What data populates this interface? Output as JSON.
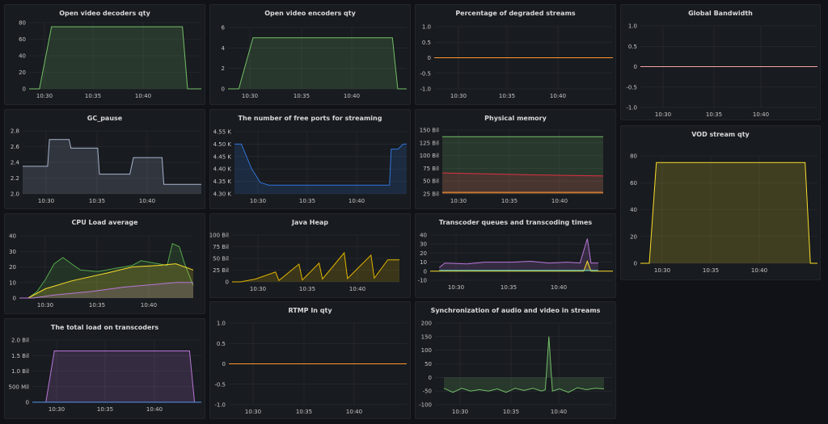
{
  "theme": {
    "background": "#111217",
    "panel": "#181b1f",
    "grid": "#2c2f35",
    "text": "#c7c7c7"
  },
  "time_ticks": [
    "10:30",
    "10:35",
    "10:40"
  ],
  "panels": [
    {
      "id": "video-decoders",
      "title": "Open video decoders qty",
      "chart_data": {
        "type": "area",
        "ylim": [
          0,
          80
        ],
        "yticks": [
          "0",
          "20",
          "40",
          "60",
          "80"
        ],
        "series": [
          {
            "color": "#73bf69",
            "values": [
              [
                0,
                0
              ],
              [
                0.06,
                0
              ],
              [
                0.13,
                75
              ],
              [
                0.89,
                75
              ],
              [
                0.92,
                0
              ],
              [
                1,
                0
              ]
            ]
          }
        ]
      }
    },
    {
      "id": "video-encoders",
      "title": "Open video encoders qty",
      "chart_data": {
        "type": "area",
        "ylim": [
          0,
          6
        ],
        "yticks": [
          "0",
          "2",
          "4",
          "6"
        ],
        "series": [
          {
            "color": "#73bf69",
            "values": [
              [
                0,
                0
              ],
              [
                0.06,
                0
              ],
              [
                0.14,
                5
              ],
              [
                0.92,
                5
              ],
              [
                0.95,
                0
              ],
              [
                1,
                0
              ]
            ]
          }
        ]
      }
    },
    {
      "id": "degraded-streams",
      "title": "Percentage of degraded streams",
      "chart_data": {
        "type": "line",
        "ylim": [
          -1,
          1
        ],
        "yticks": [
          "-1.0",
          "-0.5",
          "0",
          "0.5",
          "1.0"
        ],
        "series": [
          {
            "color": "#ff9830",
            "values": [
              [
                0,
                0
              ],
              [
                1,
                0
              ]
            ]
          }
        ]
      }
    },
    {
      "id": "global-bandwidth",
      "title": "Global Bandwidth",
      "chart_data": {
        "type": "line",
        "ylim": [
          -1,
          1
        ],
        "yticks": [
          "-1.0",
          "-0.5",
          "0",
          "0.5",
          "1.0"
        ],
        "series": [
          {
            "color": "#f2a2a2",
            "values": [
              [
                0,
                0
              ],
              [
                1,
                0
              ]
            ]
          }
        ]
      }
    },
    {
      "id": "gc-pause",
      "title": "GC_pause",
      "chart_data": {
        "type": "area",
        "ylim": [
          2.0,
          2.8
        ],
        "yticks": [
          "2.0",
          "2.2",
          "2.4",
          "2.6",
          "2.8"
        ],
        "series": [
          {
            "color": "#a7b4cf",
            "values": [
              [
                0,
                2.35
              ],
              [
                0.14,
                2.35
              ],
              [
                0.15,
                2.69
              ],
              [
                0.26,
                2.69
              ],
              [
                0.27,
                2.58
              ],
              [
                0.42,
                2.58
              ],
              [
                0.43,
                2.25
              ],
              [
                0.6,
                2.25
              ],
              [
                0.62,
                2.46
              ],
              [
                0.78,
                2.46
              ],
              [
                0.79,
                2.12
              ],
              [
                1,
                2.12
              ]
            ]
          }
        ]
      }
    },
    {
      "id": "free-ports",
      "title": "The number of free ports for streaming",
      "chart_data": {
        "type": "area",
        "ylim": [
          4.3,
          4.55
        ],
        "yticks": [
          "4.30 K",
          "4.35 K",
          "4.40 K",
          "4.45 K",
          "4.50 K",
          "4.55 K"
        ],
        "series": [
          {
            "color": "#3274d9",
            "values": [
              [
                0,
                4.5
              ],
              [
                0.04,
                4.5
              ],
              [
                0.1,
                4.4
              ],
              [
                0.15,
                4.345
              ],
              [
                0.2,
                4.335
              ],
              [
                0.5,
                4.335
              ],
              [
                0.9,
                4.335
              ],
              [
                0.91,
                4.48
              ],
              [
                0.95,
                4.48
              ],
              [
                0.98,
                4.5
              ],
              [
                1,
                4.5
              ]
            ]
          }
        ]
      }
    },
    {
      "id": "physical-memory",
      "title": "Physical memory",
      "chart_data": {
        "type": "area",
        "ylim": [
          25,
          150
        ],
        "yticks": [
          "25 Bil",
          "50 Bil",
          "75 Bil",
          "100 Bil",
          "125 Bil",
          "150 Bil"
        ],
        "series": [
          {
            "color": "#73bf69",
            "values": [
              [
                0,
                137
              ],
              [
                1,
                137
              ]
            ]
          },
          {
            "color": "#e02f44",
            "values": [
              [
                0,
                66
              ],
              [
                0.3,
                64
              ],
              [
                0.6,
                62
              ],
              [
                1,
                60
              ]
            ]
          },
          {
            "color": "#ff9830",
            "values": [
              [
                0,
                28
              ],
              [
                1,
                28
              ]
            ]
          }
        ]
      }
    },
    {
      "id": "vod-stream",
      "title": "VOD stream qty",
      "chart_data": {
        "type": "area",
        "ylim": [
          0,
          80
        ],
        "yticks": [
          "0",
          "20",
          "40",
          "60",
          "80"
        ],
        "series": [
          {
            "color": "#fade2a",
            "values": [
              [
                0,
                0
              ],
              [
                0.05,
                0
              ],
              [
                0.09,
                75
              ],
              [
                0.93,
                75
              ],
              [
                0.96,
                0
              ],
              [
                1,
                0
              ]
            ]
          }
        ]
      }
    },
    {
      "id": "cpu-load",
      "title": "CPU Load average",
      "chart_data": {
        "type": "area",
        "ylim": [
          0,
          40
        ],
        "yticks": [
          "0",
          "10",
          "20",
          "30",
          "40"
        ],
        "series": [
          {
            "color": "#56a64b",
            "values": [
              [
                0,
                0
              ],
              [
                0.05,
                0
              ],
              [
                0.1,
                4
              ],
              [
                0.15,
                12
              ],
              [
                0.2,
                22
              ],
              [
                0.25,
                26
              ],
              [
                0.3,
                22
              ],
              [
                0.35,
                18
              ],
              [
                0.45,
                17
              ],
              [
                0.55,
                19
              ],
              [
                0.65,
                21
              ],
              [
                0.7,
                24
              ],
              [
                0.75,
                23
              ],
              [
                0.8,
                22
              ],
              [
                0.85,
                21
              ],
              [
                0.88,
                35
              ],
              [
                0.92,
                33
              ],
              [
                0.95,
                22
              ],
              [
                1,
                8
              ]
            ]
          },
          {
            "color": "#fade2a",
            "values": [
              [
                0,
                0
              ],
              [
                0.05,
                0
              ],
              [
                0.15,
                6
              ],
              [
                0.3,
                11
              ],
              [
                0.5,
                16
              ],
              [
                0.65,
                20
              ],
              [
                0.8,
                21
              ],
              [
                0.9,
                22
              ],
              [
                1,
                18
              ]
            ]
          },
          {
            "color": "#b877d9",
            "values": [
              [
                0,
                0
              ],
              [
                0.08,
                0
              ],
              [
                0.2,
                2
              ],
              [
                0.4,
                4
              ],
              [
                0.6,
                7
              ],
              [
                0.8,
                9
              ],
              [
                0.9,
                10
              ],
              [
                1,
                10
              ]
            ]
          }
        ]
      }
    },
    {
      "id": "java-heap",
      "title": "Java Heap",
      "chart_data": {
        "type": "area",
        "ylim": [
          0,
          100
        ],
        "yticks": [
          "0",
          "25 Bil",
          "50 Bil",
          "75 Bil",
          "100 Bil"
        ],
        "series": [
          {
            "color": "#e0b400",
            "values": [
              [
                0,
                0
              ],
              [
                0.05,
                0
              ],
              [
                0.14,
                6
              ],
              [
                0.26,
                21
              ],
              [
                0.28,
                3
              ],
              [
                0.4,
                38
              ],
              [
                0.42,
                4
              ],
              [
                0.52,
                40
              ],
              [
                0.54,
                6
              ],
              [
                0.67,
                62
              ],
              [
                0.69,
                7
              ],
              [
                0.83,
                57
              ],
              [
                0.85,
                8
              ],
              [
                0.93,
                47
              ],
              [
                1,
                47
              ]
            ]
          }
        ]
      }
    },
    {
      "id": "transcoder-queues",
      "title": "Transcoder queues and transcoding times",
      "chart_data": {
        "type": "area",
        "ylim": [
          -10,
          40
        ],
        "yticks": [
          "-10",
          "0",
          "10",
          "20",
          "30",
          "40"
        ],
        "series": [
          {
            "color": "#b877d9",
            "values": [
              [
                0.05,
                4
              ],
              [
                0.08,
                9
              ],
              [
                0.2,
                8
              ],
              [
                0.3,
                10
              ],
              [
                0.45,
                10
              ],
              [
                0.55,
                11
              ],
              [
                0.65,
                9
              ],
              [
                0.75,
                10
              ],
              [
                0.82,
                9
              ],
              [
                0.86,
                36
              ],
              [
                0.88,
                9
              ],
              [
                0.92,
                9
              ]
            ]
          },
          {
            "color": "#fade2a",
            "values": [
              [
                0,
                0
              ],
              [
                0.84,
                0
              ],
              [
                0.86,
                11
              ],
              [
                0.88,
                0
              ],
              [
                1,
                0
              ]
            ]
          },
          {
            "color": "#5ecfc0",
            "values": [
              [
                0.05,
                1
              ],
              [
                0.92,
                1
              ]
            ]
          }
        ]
      }
    },
    {
      "id": "rtmp-in",
      "title": "RTMP In qty",
      "chart_data": {
        "type": "line",
        "ylim": [
          -1,
          1
        ],
        "yticks": [
          "-1.0",
          "-0.5",
          "0",
          "0.5",
          "1.0"
        ],
        "series": [
          {
            "color": "#ff9830",
            "values": [
              [
                0,
                0
              ],
              [
                1,
                0
              ]
            ]
          }
        ]
      }
    },
    {
      "id": "av-sync",
      "title": "Synchronization of audio and video in streams",
      "chart_data": {
        "type": "area",
        "ylim": [
          -100,
          200
        ],
        "yticks": [
          "-100",
          "-50",
          "0",
          "50",
          "100",
          "150",
          "200"
        ],
        "series": [
          {
            "color": "#73bf69",
            "values": [
              [
                0.05,
                -40
              ],
              [
                0.1,
                -55
              ],
              [
                0.15,
                -40
              ],
              [
                0.2,
                -50
              ],
              [
                0.25,
                -45
              ],
              [
                0.3,
                -50
              ],
              [
                0.35,
                -42
              ],
              [
                0.4,
                -55
              ],
              [
                0.45,
                -40
              ],
              [
                0.5,
                -48
              ],
              [
                0.55,
                -40
              ],
              [
                0.6,
                -50
              ],
              [
                0.62,
                -45
              ],
              [
                0.64,
                150
              ],
              [
                0.66,
                -50
              ],
              [
                0.7,
                -42
              ],
              [
                0.75,
                -55
              ],
              [
                0.8,
                -38
              ],
              [
                0.85,
                -45
              ],
              [
                0.9,
                -40
              ],
              [
                0.95,
                -42
              ]
            ]
          }
        ]
      }
    },
    {
      "id": "transcoder-load",
      "title": "The total load on transcoders",
      "chart_data": {
        "type": "area",
        "ylim": [
          0,
          2
        ],
        "yticks": [
          "0",
          "500 Mil",
          "1.0 Bil",
          "1.5 Bil",
          "2.0 Bil"
        ],
        "series": [
          {
            "color": "#b877d9",
            "values": [
              [
                0,
                0
              ],
              [
                0.08,
                0
              ],
              [
                0.13,
                1.65
              ],
              [
                0.93,
                1.65
              ],
              [
                0.96,
                0
              ],
              [
                1,
                0
              ]
            ]
          },
          {
            "color": "#5794f2",
            "values": [
              [
                0,
                0
              ],
              [
                1,
                0
              ]
            ]
          }
        ]
      }
    }
  ]
}
